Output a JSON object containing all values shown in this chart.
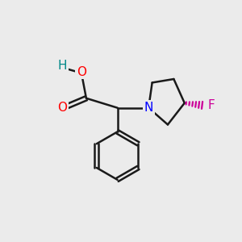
{
  "background_color": "#ebebeb",
  "bond_color": "#1a1a1a",
  "bond_width": 1.8,
  "atom_colors": {
    "O": "#ff0000",
    "N": "#0000ff",
    "F": "#cc0099",
    "H": "#008888",
    "C": "#1a1a1a"
  },
  "font_size_atoms": 11,
  "fig_width": 3.0,
  "fig_height": 3.0,
  "dpi": 100,
  "xlim": [
    0,
    10
  ],
  "ylim": [
    0,
    10
  ]
}
